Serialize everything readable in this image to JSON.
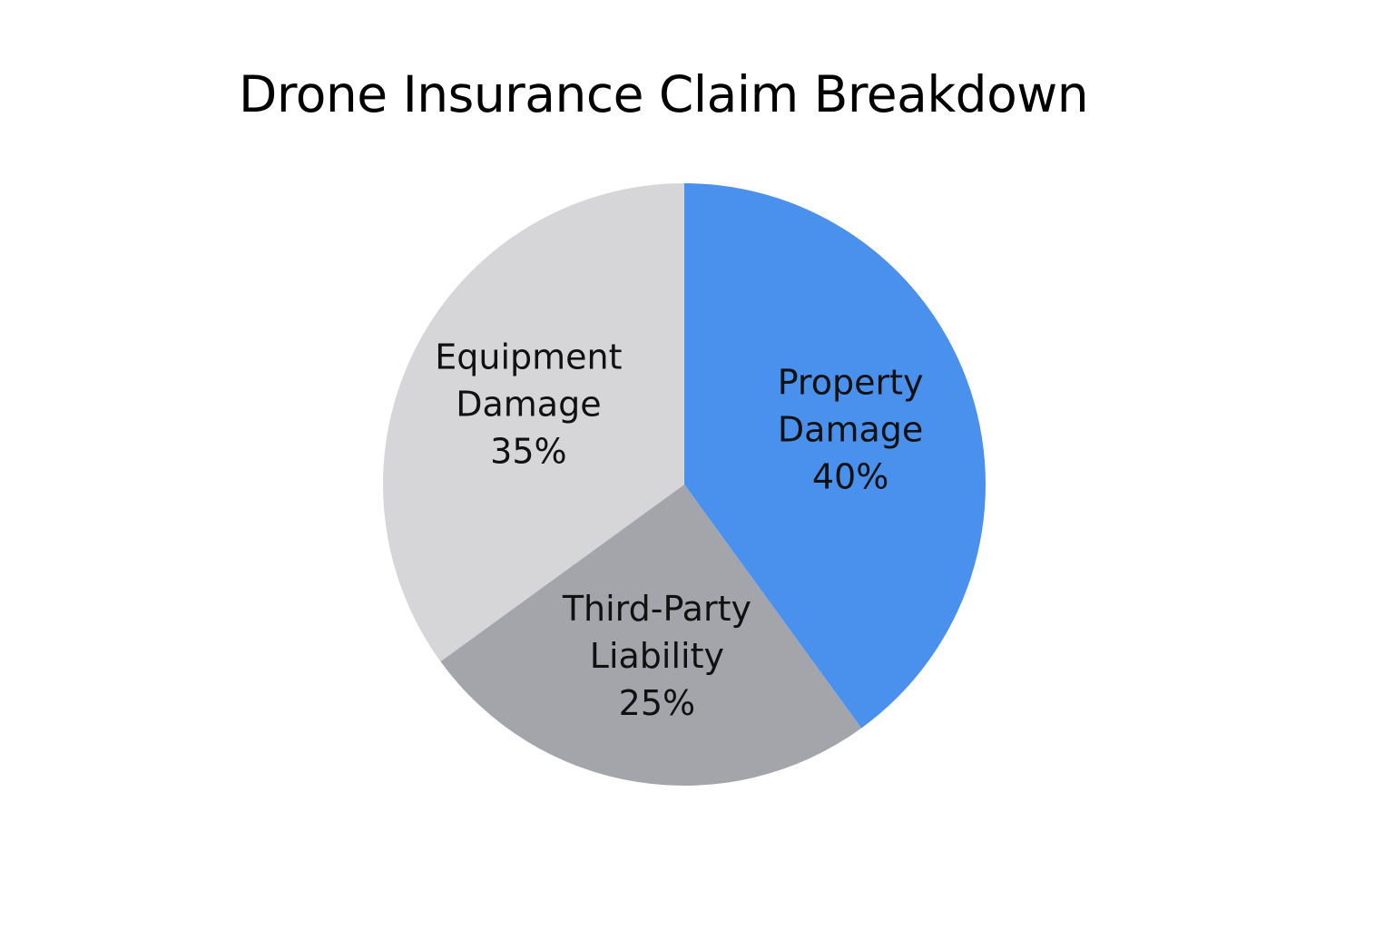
{
  "chart_data": {
    "type": "pie",
    "title": "Drone Insurance Claim Breakdown",
    "slices": [
      {
        "category": "Property Damage",
        "label_lines": [
          "Property",
          "Damage"
        ],
        "value": 40,
        "value_label": "40%",
        "color": "#4a91ee"
      },
      {
        "category": "Third-Party Liability",
        "label_lines": [
          "Third-Party",
          "Liability"
        ],
        "value": 25,
        "value_label": "25%",
        "color": "#a4a5aa"
      },
      {
        "category": "Equipment Damage",
        "label_lines": [
          "Equipment",
          "Damage"
        ],
        "value": 35,
        "value_label": "35%",
        "color": "#d6d6d8"
      }
    ],
    "start": "12 o'clock",
    "direction": "clockwise",
    "legend": "none",
    "grid": false
  }
}
